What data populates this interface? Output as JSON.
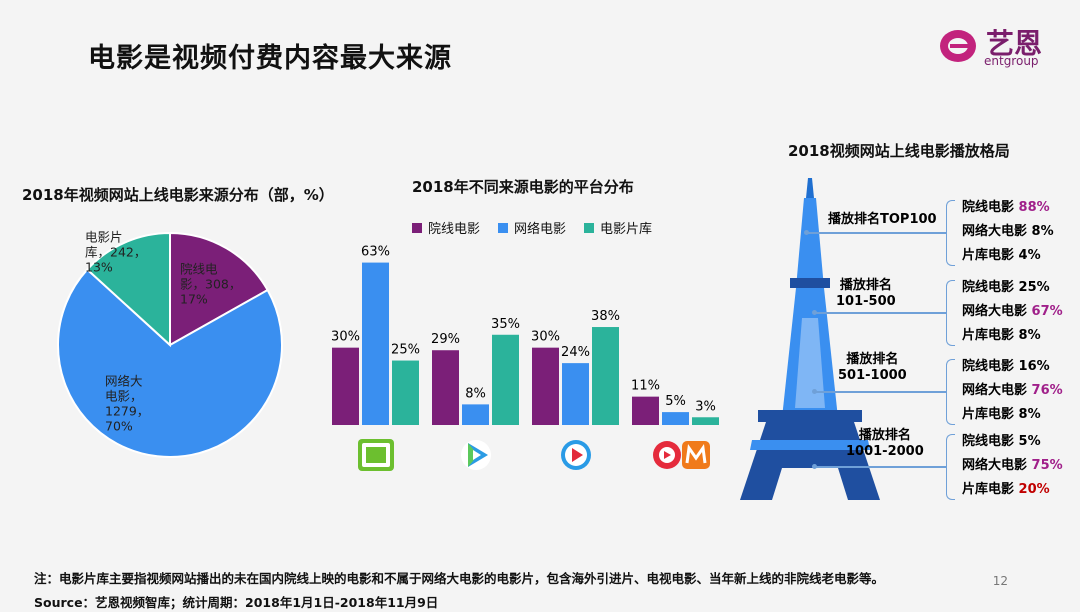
{
  "title": "电影是视频付费内容最大来源",
  "logo": {
    "cn": "艺恩",
    "en": "entgroup"
  },
  "pie": {
    "title": "2018年视频网站上线电影来源分布（部，%）",
    "slices": [
      {
        "label": "院线电影",
        "text": "院线电\n影，308，\n17%",
        "value": 308,
        "pct": 17,
        "color": "#7b1f78"
      },
      {
        "label": "网络大电影",
        "text": "网络大\n电影，\n1279，\n70%",
        "value": 1279,
        "pct": 70,
        "color": "#3a8ff0"
      },
      {
        "label": "电影片库",
        "text": "电影片\n库，242，\n13%",
        "value": 242,
        "pct": 13,
        "color": "#2bb39b"
      }
    ]
  },
  "bar": {
    "title": "2018年不同来源电影的平台分布",
    "legend": [
      "院线电影",
      "网络电影",
      "电影片库"
    ],
    "colors": [
      "#7b1f78",
      "#3a8ff0",
      "#2bb39b"
    ],
    "platforms": [
      {
        "icon": "iqiyi-logo-icon",
        "values": [
          30,
          63,
          25
        ]
      },
      {
        "icon": "tencent-video-logo-icon",
        "values": [
          29,
          8,
          35
        ]
      },
      {
        "icon": "youku-logo-icon",
        "values": [
          30,
          24,
          38
        ]
      },
      {
        "icon": "mgtv-logo-icon",
        "values": [
          11,
          5,
          3
        ]
      }
    ]
  },
  "chart_data": [
    {
      "type": "pie",
      "title": "2018年视频网站上线电影来源分布（部，%）",
      "labels": [
        "院线电影",
        "网络大电影",
        "电影片库"
      ],
      "values": [
        308,
        1279,
        242
      ],
      "percents": [
        17,
        70,
        13
      ]
    },
    {
      "type": "bar",
      "title": "2018年不同来源电影的平台分布",
      "categories": [
        "爱奇艺",
        "腾讯视频",
        "优酷",
        "芒果TV"
      ],
      "series": [
        {
          "name": "院线电影",
          "values": [
            30,
            29,
            30,
            11
          ]
        },
        {
          "name": "网络电影",
          "values": [
            63,
            8,
            24,
            5
          ]
        },
        {
          "name": "电影片库",
          "values": [
            25,
            35,
            38,
            3
          ]
        }
      ]
    }
  ],
  "tower": {
    "title": "2018视频网站上线电影播放格局",
    "tiers": [
      {
        "label": "播放排名TOP100",
        "rows": [
          {
            "name": "院线电影",
            "value": "88%",
            "color": "#a0208a"
          },
          {
            "name": "网络大电影",
            "value": "8%",
            "color": "#000000"
          },
          {
            "name": "片库电影",
            "value": "4%",
            "color": "#000000"
          }
        ]
      },
      {
        "label": "播放排名\n101-500",
        "rows": [
          {
            "name": "院线电影",
            "value": "25%",
            "color": "#000000"
          },
          {
            "name": "网络大电影",
            "value": "67%",
            "color": "#a0208a"
          },
          {
            "name": "片库电影",
            "value": "8%",
            "color": "#000000"
          }
        ]
      },
      {
        "label": "播放排名\n501-1000",
        "rows": [
          {
            "name": "院线电影",
            "value": "16%",
            "color": "#000000"
          },
          {
            "name": "网络大电影",
            "value": "76%",
            "color": "#a0208a"
          },
          {
            "name": "片库电影",
            "value": "8%",
            "color": "#000000"
          }
        ]
      },
      {
        "label": "播放排名\n1001-2000",
        "rows": [
          {
            "name": "院线电影",
            "value": "5%",
            "color": "#000000"
          },
          {
            "name": "网络大电影",
            "value": "75%",
            "color": "#a0208a"
          },
          {
            "name": "片库电影",
            "value": "20%",
            "color": "#c00000"
          }
        ]
      }
    ]
  },
  "footer": {
    "note": "注：电影片库主要指视频网站播出的未在国内院线上映的电影和不属于网络大电影的电影片，包含海外引进片、电视电影、当年新上线的非院线老电影等。",
    "source": "Source：艺恩视频智库；统计周期：2018年1月1日-2018年11月9日",
    "page": "12"
  }
}
